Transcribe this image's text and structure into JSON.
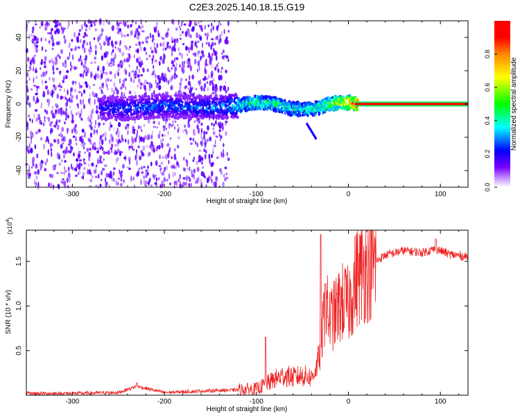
{
  "title": "C2E3.2025.140.18.15.G19",
  "chart_data": [
    {
      "type": "heatmap",
      "xlabel": "Height of straight line (km)",
      "ylabel": "Frequency (Hz)",
      "xlim": [
        -350,
        130
      ],
      "ylim": [
        -50,
        50
      ],
      "xticks": [
        -300,
        -200,
        -100,
        0,
        100
      ],
      "yticks": [
        -40,
        -20,
        0,
        20,
        40
      ],
      "colorbar": {
        "label": "Normalized spectral amplitude",
        "range": [
          0,
          1
        ],
        "ticks": [
          "0.0",
          "0.2",
          "0.4",
          "0.6",
          "0.8"
        ],
        "colors": [
          "#ffffff",
          "#7a00ff",
          "#0000ff",
          "#00ffff",
          "#00ff00",
          "#ffff00",
          "#ff8800",
          "#ff0000",
          "#ff0000"
        ]
      },
      "frequency_trace": {
        "x": [
          -270,
          -240,
          -200,
          -170,
          -140,
          -120,
          -100,
          -80,
          -60,
          -40,
          -30,
          -20,
          -10,
          0,
          10,
          130
        ],
        "y": [
          -2,
          -3,
          -1,
          -2,
          -2,
          -1,
          1,
          0,
          -3,
          -3,
          -2,
          0,
          1,
          1,
          0,
          0
        ],
        "peak_amplitude": [
          0.25,
          0.3,
          0.32,
          0.32,
          0.35,
          0.45,
          0.5,
          0.5,
          0.45,
          0.45,
          0.5,
          0.6,
          0.7,
          0.8,
          1.0,
          1.0
        ]
      },
      "noise_region_x": [
        -350,
        -130
      ],
      "grid": false
    },
    {
      "type": "line",
      "xlabel": "Height of straight line (km)",
      "ylabel": "SNR (10 * v/v)",
      "y_scale_label": "(x10",
      "y_scale_exp": "4",
      "xlim": [
        -350,
        130
      ],
      "ylim": [
        0,
        1.85
      ],
      "xticks": [
        -300,
        -200,
        -100,
        0,
        100
      ],
      "yticks": [
        0.5,
        1.0,
        1.5
      ],
      "ytick_labels": [
        "0.5",
        "1.0",
        "1.5"
      ],
      "grid": false,
      "series": [
        {
          "color": "#ee2222",
          "x": [
            -350,
            -300,
            -250,
            -230,
            -200,
            -150,
            -120,
            -100,
            -90,
            -80,
            -70,
            -60,
            -50,
            -40,
            -35,
            -30,
            -27,
            -25,
            -22,
            -20,
            -15,
            -10,
            -5,
            0,
            5,
            10,
            20,
            30,
            40,
            60,
            80,
            95,
            110,
            130
          ],
          "y": [
            0.02,
            0.02,
            0.03,
            0.1,
            0.03,
            0.05,
            0.06,
            0.07,
            0.12,
            0.18,
            0.22,
            0.2,
            0.22,
            0.2,
            0.3,
            0.5,
            0.85,
            1.05,
            0.9,
            0.85,
            0.9,
            1.0,
            1.05,
            1.0,
            1.2,
            1.35,
            1.45,
            1.5,
            1.57,
            1.62,
            1.6,
            1.64,
            1.58,
            1.55
          ],
          "peaks": [
            [
              -230,
              0.14
            ],
            [
              -90,
              0.65
            ],
            [
              -30,
              1.8
            ],
            [
              -25,
              1.25
            ],
            [
              95,
              1.75
            ]
          ]
        }
      ]
    }
  ]
}
